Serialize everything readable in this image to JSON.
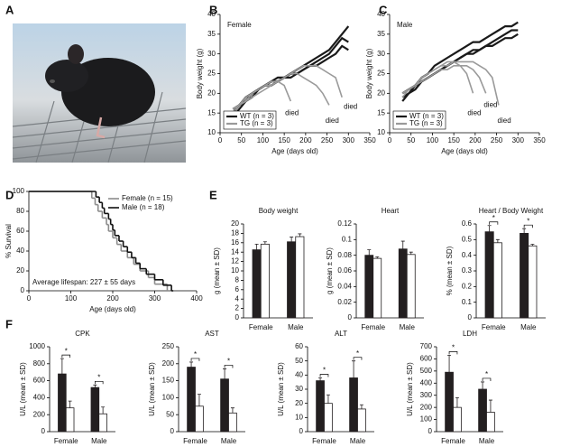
{
  "panel_labels": [
    "A",
    "B",
    "C",
    "D",
    "E",
    "F"
  ],
  "chart_data": [
    {
      "type": "line",
      "title": "Female",
      "xlabel": "Age (days old)",
      "ylabel": "Body weight (g)",
      "x": [
        30,
        45,
        60,
        75,
        90,
        105,
        120,
        135,
        150,
        165,
        180,
        195,
        210,
        225,
        240,
        255,
        270,
        285,
        300
      ],
      "xlim": [
        0,
        350
      ],
      "xticks": [
        0,
        50,
        100,
        150,
        200,
        250,
        300,
        350
      ],
      "ylim": [
        10,
        40
      ],
      "yticks": [
        10,
        15,
        20,
        25,
        30,
        35,
        40
      ],
      "legend": "lower left",
      "annotations": [
        "died",
        "died",
        "died"
      ],
      "series": [
        {
          "name": "WT (n = 3)",
          "color": "#1a1a1a",
          "values": [
            [
              14,
              16,
              18,
              20,
              21,
              22,
              23,
              24,
              24,
              25,
              26,
              27,
              28,
              29,
              30,
              31,
              33,
              35,
              37
            ],
            [
              15,
              17,
              18,
              19,
              21,
              22,
              23,
              23,
              24,
              24,
              25,
              26,
              27,
              28,
              29,
              30,
              32,
              34,
              33
            ],
            [
              16,
              17,
              19,
              20,
              21,
              22,
              22,
              23,
              24,
              25,
              25,
              26,
              27,
              27,
              28,
              29,
              30,
              32,
              31
            ]
          ]
        },
        {
          "name": "TG (n = 3)",
          "color": "#9a9a9a",
          "values": [
            [
              16,
              17,
              19,
              20,
              21,
              22,
              23,
              23,
              22,
              18,
              null,
              null,
              null,
              null,
              null,
              null,
              null,
              null,
              null
            ],
            [
              15,
              17,
              18,
              19,
              20,
              21,
              22,
              23,
              24,
              25,
              25,
              24,
              23,
              22,
              20,
              17,
              null,
              null,
              null
            ],
            [
              16,
              17,
              18,
              20,
              21,
              22,
              22,
              23,
              24,
              25,
              26,
              27,
              27,
              27,
              26,
              25,
              24,
              19,
              null
            ]
          ]
        }
      ]
    },
    {
      "type": "line",
      "title": "Male",
      "xlabel": "Age (days old)",
      "ylabel": "Body weight (g)",
      "x": [
        30,
        45,
        60,
        75,
        90,
        105,
        120,
        135,
        150,
        165,
        180,
        195,
        210,
        225,
        240,
        255,
        270,
        285,
        300
      ],
      "xlim": [
        0,
        350
      ],
      "xticks": [
        0,
        50,
        100,
        150,
        200,
        250,
        300,
        350
      ],
      "ylim": [
        10,
        40
      ],
      "yticks": [
        10,
        15,
        20,
        25,
        30,
        35,
        40
      ],
      "legend": "lower left",
      "annotations": [
        "died",
        "died",
        "died"
      ],
      "series": [
        {
          "name": "WT (n = 3)",
          "color": "#1a1a1a",
          "values": [
            [
              19,
              20,
              22,
              24,
              25,
              27,
              28,
              29,
              30,
              31,
              32,
              33,
              33,
              34,
              35,
              36,
              37,
              37,
              38
            ],
            [
              20,
              21,
              22,
              23,
              24,
              25,
              26,
              27,
              28,
              29,
              30,
              30,
              31,
              32,
              32,
              33,
              34,
              34,
              35
            ],
            [
              18,
              20,
              21,
              23,
              24,
              25,
              26,
              27,
              28,
              29,
              30,
              31,
              31,
              32,
              33,
              34,
              35,
              36,
              36
            ]
          ]
        },
        {
          "name": "TG (n = 3)",
          "color": "#9a9a9a",
          "values": [
            [
              20,
              21,
              22,
              24,
              25,
              26,
              27,
              27,
              28,
              27,
              25,
              20,
              null,
              null,
              null,
              null,
              null,
              null,
              null
            ],
            [
              19,
              21,
              22,
              23,
              24,
              25,
              26,
              26,
              27,
              27,
              27,
              26,
              24,
              20,
              null,
              null,
              null,
              null,
              null
            ],
            [
              20,
              21,
              22,
              24,
              25,
              26,
              27,
              28,
              28,
              28,
              28,
              28,
              27,
              26,
              24,
              17,
              null,
              null,
              null
            ]
          ]
        }
      ]
    },
    {
      "type": "step",
      "xlabel": "Age (days old)",
      "ylabel": "% Survival",
      "xlim": [
        0,
        400
      ],
      "xticks": [
        0,
        100,
        200,
        300,
        400
      ],
      "ylim": [
        0,
        100
      ],
      "yticks": [
        0,
        20,
        40,
        60,
        80,
        100
      ],
      "legend": "upper right",
      "annotations": [
        "Average lifespan: 227 ± 55 days"
      ],
      "series": [
        {
          "name": "Female (n = 15)",
          "color": "#8c8c8c",
          "x": [
            0,
            150,
            158,
            165,
            175,
            185,
            190,
            200,
            210,
            220,
            235,
            250,
            265,
            285,
            300,
            330
          ],
          "values": [
            100,
            93.3,
            86.7,
            80,
            73.3,
            66.7,
            60,
            53.3,
            46.7,
            40,
            33.3,
            26.7,
            20,
            13.3,
            6.7,
            0
          ]
        },
        {
          "name": "Male (n = 18)",
          "color": "#111111",
          "x": [
            0,
            160,
            168,
            175,
            180,
            190,
            195,
            200,
            205,
            215,
            225,
            235,
            245,
            255,
            265,
            280,
            300,
            320,
            340
          ],
          "values": [
            100,
            94.4,
            88.9,
            83.3,
            77.8,
            72.2,
            66.7,
            61.1,
            55.6,
            50,
            44.4,
            38.9,
            33.3,
            27.8,
            22.2,
            16.7,
            11.1,
            5.6,
            0
          ]
        }
      ]
    },
    {
      "type": "bar",
      "title": "Body weight",
      "ylabel": "g (mean ± SD)",
      "categories": [
        "Female",
        "Male"
      ],
      "ylim": [
        0,
        20
      ],
      "yticks": [
        0,
        2,
        4,
        6,
        8,
        10,
        12,
        14,
        16,
        18,
        20
      ],
      "series": [
        {
          "color": "#231f20",
          "values": [
            14.5,
            16.2
          ],
          "errors": [
            1.2,
            1.0
          ]
        },
        {
          "color": "#ffffff",
          "values": [
            15.7,
            17.3
          ],
          "errors": [
            0.5,
            0.6
          ]
        }
      ]
    },
    {
      "type": "bar",
      "title": "Heart",
      "ylabel": "g (mean ± SD)",
      "categories": [
        "Female",
        "Male"
      ],
      "ylim": [
        0,
        0.12
      ],
      "yticks": [
        0,
        0.02,
        0.04,
        0.06,
        0.08,
        0.1,
        0.12
      ],
      "series": [
        {
          "color": "#231f20",
          "values": [
            0.08,
            0.088
          ],
          "errors": [
            0.007,
            0.01
          ]
        },
        {
          "color": "#ffffff",
          "values": [
            0.076,
            0.081
          ],
          "errors": [
            0.002,
            0.003
          ]
        }
      ]
    },
    {
      "type": "bar",
      "title": "Heart / Body Weight",
      "ylabel": "% (mean ± SD)",
      "categories": [
        "Female",
        "Male"
      ],
      "ylim": [
        0,
        0.6
      ],
      "yticks": [
        0,
        0.1,
        0.2,
        0.3,
        0.4,
        0.5,
        0.6
      ],
      "significance": [
        "*",
        "*"
      ],
      "series": [
        {
          "color": "#231f20",
          "values": [
            0.55,
            0.54
          ],
          "errors": [
            0.04,
            0.03
          ]
        },
        {
          "color": "#ffffff",
          "values": [
            0.48,
            0.46
          ],
          "errors": [
            0.02,
            0.01
          ]
        }
      ]
    },
    {
      "type": "bar",
      "title": "CPK",
      "ylabel": "U/L (mean ± SD)",
      "categories": [
        "Female",
        "Male"
      ],
      "ylim": [
        0,
        1000
      ],
      "yticks": [
        0,
        200,
        400,
        600,
        800,
        1000
      ],
      "significance": [
        "*",
        "*"
      ],
      "series": [
        {
          "color": "#231f20",
          "values": [
            680,
            520
          ],
          "errors": [
            180,
            30
          ]
        },
        {
          "color": "#ffffff",
          "values": [
            280,
            210
          ],
          "errors": [
            80,
            80
          ]
        }
      ]
    },
    {
      "type": "bar",
      "title": "AST",
      "ylabel": "U/L (mean ± SD)",
      "categories": [
        "Female",
        "Male"
      ],
      "ylim": [
        0,
        250
      ],
      "yticks": [
        0,
        50,
        100,
        150,
        200,
        250
      ],
      "significance": [
        "*",
        "*"
      ],
      "series": [
        {
          "color": "#231f20",
          "values": [
            190,
            155
          ],
          "errors": [
            15,
            30
          ]
        },
        {
          "color": "#ffffff",
          "values": [
            75,
            55
          ],
          "errors": [
            35,
            15
          ]
        }
      ]
    },
    {
      "type": "bar",
      "title": "ALT",
      "ylabel": "U/L (mean ± SD)",
      "categories": [
        "Female",
        "Male"
      ],
      "ylim": [
        0,
        60
      ],
      "yticks": [
        0,
        10,
        20,
        30,
        40,
        50,
        60
      ],
      "significance": [
        "*",
        "*"
      ],
      "series": [
        {
          "color": "#231f20",
          "values": [
            36,
            38
          ],
          "errors": [
            2,
            12
          ]
        },
        {
          "color": "#ffffff",
          "values": [
            20,
            16
          ],
          "errors": [
            6,
            3
          ]
        }
      ]
    },
    {
      "type": "bar",
      "title": "LDH",
      "ylabel": "U/L (mean ± SD)",
      "categories": [
        "Female",
        "Male"
      ],
      "ylim": [
        0,
        700
      ],
      "yticks": [
        0,
        100,
        200,
        300,
        400,
        500,
        600,
        700
      ],
      "significance": [
        "*",
        "*"
      ],
      "series": [
        {
          "color": "#231f20",
          "values": [
            490,
            350
          ],
          "errors": [
            140,
            60
          ]
        },
        {
          "color": "#ffffff",
          "values": [
            200,
            160
          ],
          "errors": [
            80,
            100
          ]
        }
      ]
    }
  ]
}
